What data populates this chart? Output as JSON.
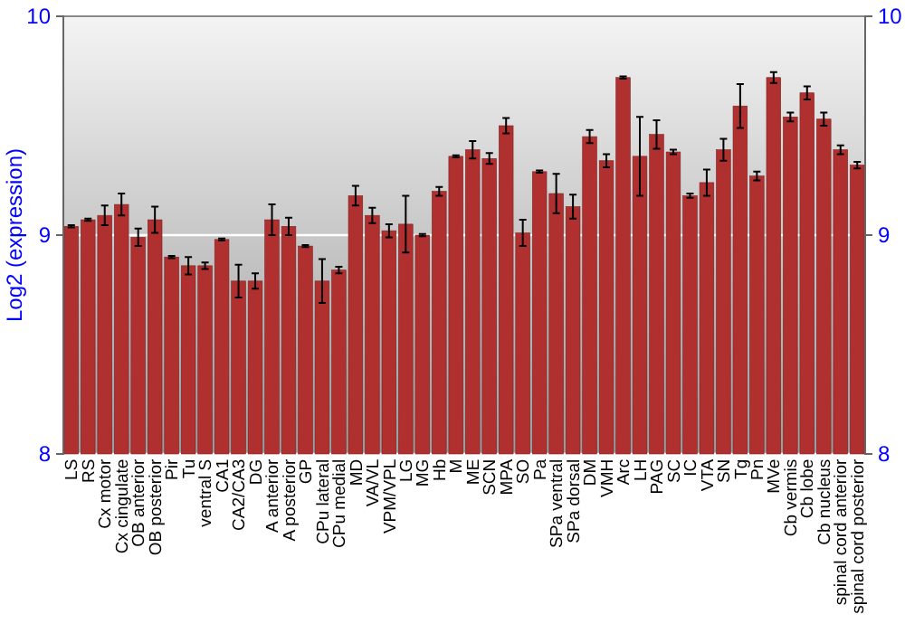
{
  "chart_data": {
    "type": "bar",
    "ylabel": "Log2 (expression)",
    "categories": [
      "LS",
      "RS",
      "Cx motor",
      "Cx cingulate",
      "OB anterior",
      "OB posterior",
      "Pir",
      "Tu",
      "ventral S",
      "CA1",
      "CA2/CA3",
      "DG",
      "A anterior",
      "A posterior",
      "GP",
      "CPu lateral",
      "CPu medial",
      "MD",
      "VA/VL",
      "VPM/VPL",
      "LG",
      "MG",
      "Hb",
      "M",
      "ME",
      "SCN",
      "MPA",
      "SO",
      "Pa",
      "SPa ventral",
      "SPa dorsal",
      "DM",
      "VMH",
      "Arc",
      "LH",
      "PAG",
      "SC",
      "IC",
      "VTA",
      "SN",
      "Tg",
      "Pn",
      "MVe",
      "Cb vermis",
      "Cb lobe",
      "Cb nucleus",
      "spinal cord anterior",
      "spinal cord posterior"
    ],
    "values": [
      9.04,
      9.07,
      9.09,
      9.14,
      8.99,
      9.07,
      8.9,
      8.86,
      8.86,
      8.98,
      8.79,
      8.79,
      9.07,
      9.04,
      8.95,
      8.79,
      8.84,
      9.18,
      9.09,
      9.02,
      9.05,
      9.0,
      9.2,
      9.36,
      9.39,
      9.35,
      9.5,
      9.01,
      9.29,
      9.19,
      9.13,
      9.45,
      9.34,
      9.72,
      9.36,
      9.46,
      9.38,
      9.18,
      9.24,
      9.39,
      9.59,
      9.27,
      9.72,
      9.54,
      9.65,
      9.53,
      9.39,
      9.32
    ],
    "errors": [
      0.005,
      0.005,
      0.045,
      0.05,
      0.04,
      0.06,
      0.005,
      0.04,
      0.015,
      0.005,
      0.075,
      0.035,
      0.07,
      0.04,
      0.005,
      0.1,
      0.015,
      0.045,
      0.035,
      0.03,
      0.13,
      0.005,
      0.02,
      0.005,
      0.04,
      0.025,
      0.035,
      0.06,
      0.005,
      0.09,
      0.055,
      0.03,
      0.03,
      0.005,
      0.18,
      0.065,
      0.01,
      0.01,
      0.06,
      0.05,
      0.1,
      0.02,
      0.025,
      0.02,
      0.03,
      0.03,
      0.02,
      0.015
    ],
    "color": "#b03030",
    "ylim": [
      8,
      10
    ],
    "yticks": [
      8,
      9,
      10
    ],
    "y2lim": [
      8,
      10
    ],
    "y2ticks": [
      8,
      9,
      10
    ],
    "grid": "y"
  }
}
